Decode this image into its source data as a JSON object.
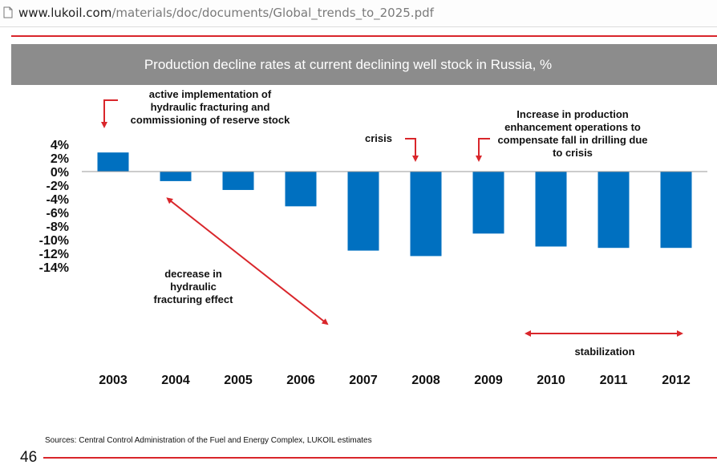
{
  "browser": {
    "url_domain": "www.lukoil.com",
    "url_path": "/materials/doc/documents/Global_trends_to_2025.pdf"
  },
  "slide": {
    "title": "Production decline rates at current declining well stock in Russia, %",
    "source": "Sources: Central Control Administration of the Fuel and Energy Complex, LUKOIL estimates",
    "page_number": "46",
    "accent_color": "#d9262b",
    "title_bar_color": "#8c8c8c"
  },
  "chart_data": {
    "type": "bar",
    "categories": [
      "2003",
      "2004",
      "2005",
      "2006",
      "2007",
      "2008",
      "2009",
      "2010",
      "2011",
      "2012"
    ],
    "values": [
      2.8,
      -1.4,
      -2.7,
      -5.1,
      -11.6,
      -12.4,
      -9.1,
      -11.0,
      -11.2,
      -11.2
    ],
    "unit": "%",
    "ylim": [
      -14,
      4
    ],
    "yticks": [
      "4%",
      "2%",
      "0%",
      "-2%",
      "-4%",
      "-6%",
      "-8%",
      "-10%",
      "-12%",
      "-14%"
    ],
    "bar_color": "#0070c0",
    "grid": false,
    "legend": "none",
    "annotations": {
      "reserve": "active implementation of hydraulic fracturing and commissioning of reserve stock",
      "crisis": "crisis",
      "enhancement": "Increase in production enhancement operations to compensate fall in drilling due to crisis",
      "decrease": "decrease in hydraulic fracturing effect",
      "stabilization": "stabilization"
    }
  }
}
